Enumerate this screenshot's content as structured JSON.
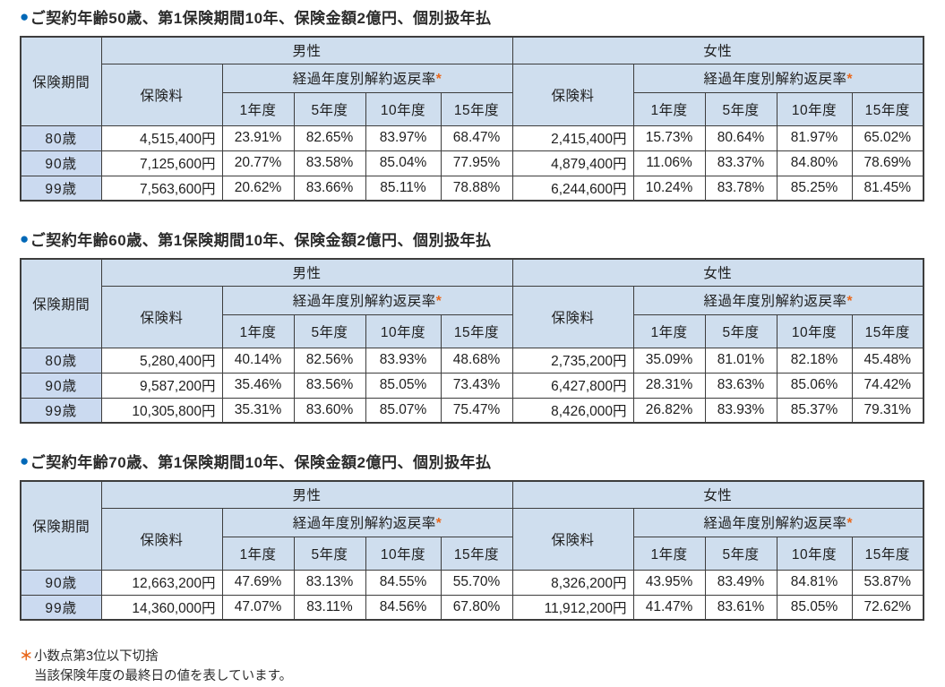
{
  "labels": {
    "bullet": "●",
    "period_header": "保険期間",
    "premium_header": "保険料",
    "rate_header": "経過年度別解約返戻率",
    "asterisk": "*",
    "male": "男性",
    "female": "女性",
    "years": [
      "1年度",
      "5年度",
      "10年度",
      "15年度"
    ]
  },
  "tables": [
    {
      "title": "ご契約年齢50歳、第1保険期間10年、保険金額2億円、個別扱年払",
      "rows": [
        {
          "period": "80歳",
          "male_premium": "4,515,400円",
          "male_rates": [
            "23.91%",
            "82.65%",
            "83.97%",
            "68.47%"
          ],
          "female_premium": "2,415,400円",
          "female_rates": [
            "15.73%",
            "80.64%",
            "81.97%",
            "65.02%"
          ]
        },
        {
          "period": "90歳",
          "male_premium": "7,125,600円",
          "male_rates": [
            "20.77%",
            "83.58%",
            "85.04%",
            "77.95%"
          ],
          "female_premium": "4,879,400円",
          "female_rates": [
            "11.06%",
            "83.37%",
            "84.80%",
            "78.69%"
          ]
        },
        {
          "period": "99歳",
          "male_premium": "7,563,600円",
          "male_rates": [
            "20.62%",
            "83.66%",
            "85.11%",
            "78.88%"
          ],
          "female_premium": "6,244,600円",
          "female_rates": [
            "10.24%",
            "83.78%",
            "85.25%",
            "81.45%"
          ]
        }
      ]
    },
    {
      "title": "ご契約年齢60歳、第1保険期間10年、保険金額2億円、個別扱年払",
      "rows": [
        {
          "period": "80歳",
          "male_premium": "5,280,400円",
          "male_rates": [
            "40.14%",
            "82.56%",
            "83.93%",
            "48.68%"
          ],
          "female_premium": "2,735,200円",
          "female_rates": [
            "35.09%",
            "81.01%",
            "82.18%",
            "45.48%"
          ]
        },
        {
          "period": "90歳",
          "male_premium": "9,587,200円",
          "male_rates": [
            "35.46%",
            "83.56%",
            "85.05%",
            "73.43%"
          ],
          "female_premium": "6,427,800円",
          "female_rates": [
            "28.31%",
            "83.63%",
            "85.06%",
            "74.42%"
          ]
        },
        {
          "period": "99歳",
          "male_premium": "10,305,800円",
          "male_rates": [
            "35.31%",
            "83.60%",
            "85.07%",
            "75.47%"
          ],
          "female_premium": "8,426,000円",
          "female_rates": [
            "26.82%",
            "83.93%",
            "85.37%",
            "79.31%"
          ]
        }
      ]
    },
    {
      "title": "ご契約年齢70歳、第1保険期間10年、保険金額2億円、個別扱年払",
      "rows": [
        {
          "period": "90歳",
          "male_premium": "12,663,200円",
          "male_rates": [
            "47.69%",
            "83.13%",
            "84.55%",
            "55.70%"
          ],
          "female_premium": "8,326,200円",
          "female_rates": [
            "43.95%",
            "83.49%",
            "84.81%",
            "53.87%"
          ]
        },
        {
          "period": "99歳",
          "male_premium": "14,360,000円",
          "male_rates": [
            "47.07%",
            "83.11%",
            "84.56%",
            "67.80%"
          ],
          "female_premium": "11,912,200円",
          "female_rates": [
            "41.47%",
            "83.61%",
            "85.05%",
            "72.62%"
          ]
        }
      ]
    }
  ],
  "footnotes": {
    "marker": "＊",
    "line1": "小数点第3位以下切捨",
    "line2": "当該保険年度の最終日の値を表しています。"
  }
}
